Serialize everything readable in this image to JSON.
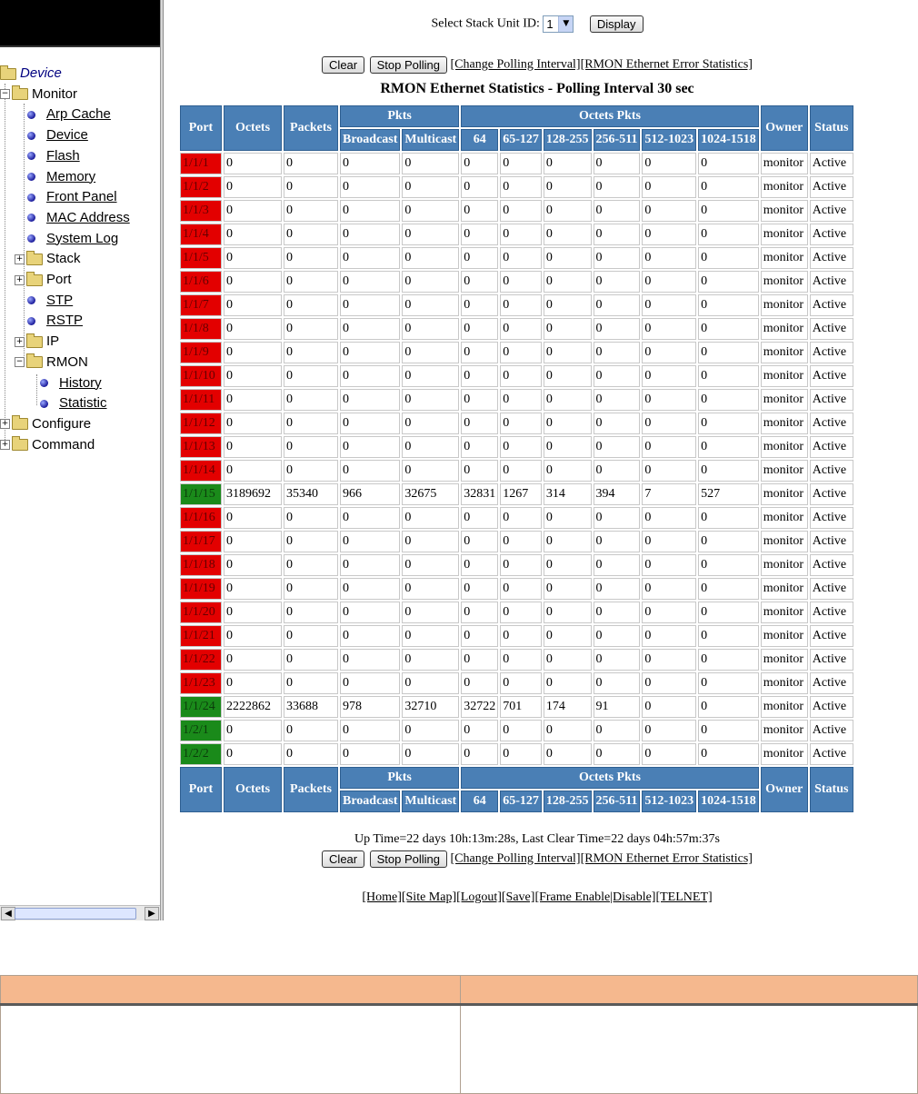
{
  "sidebar": {
    "root": "Device",
    "items": [
      {
        "label": "Monitor",
        "type": "folder-open"
      },
      {
        "label": "Arp Cache",
        "type": "link"
      },
      {
        "label": "Device",
        "type": "link"
      },
      {
        "label": "Flash",
        "type": "link"
      },
      {
        "label": "Memory",
        "type": "link"
      },
      {
        "label": "Front Panel",
        "type": "link"
      },
      {
        "label": "MAC Address",
        "type": "link"
      },
      {
        "label": "System Log",
        "type": "link"
      },
      {
        "label": "Stack",
        "type": "folder"
      },
      {
        "label": "Port",
        "type": "folder"
      },
      {
        "label": "STP",
        "type": "link"
      },
      {
        "label": "RSTP",
        "type": "link"
      },
      {
        "label": "IP",
        "type": "folder"
      },
      {
        "label": "RMON",
        "type": "folder-open"
      },
      {
        "label": "History",
        "type": "link"
      },
      {
        "label": "Statistic",
        "type": "link"
      },
      {
        "label": "Configure",
        "type": "folder"
      },
      {
        "label": "Command",
        "type": "folder"
      }
    ]
  },
  "stack_select": {
    "label": "Select Stack Unit ID:",
    "value": "1",
    "display_button": "Display"
  },
  "controls": {
    "clear": "Clear",
    "stop_polling": "Stop Polling",
    "change_interval": "[Change Polling Interval]",
    "error_stats": "[RMON Ethernet Error Statistics]"
  },
  "title": "RMON Ethernet Statistics - Polling Interval 30 sec",
  "table": {
    "headers": {
      "port": "Port",
      "octets": "Octets",
      "packets": "Packets",
      "pkts": "Pkts",
      "broadcast": "Broadcast",
      "multicast": "Multicast",
      "octets_pkts": "Octets Pkts",
      "b64": "64",
      "b65": "65-127",
      "b128": "128-255",
      "b256": "256-511",
      "b512": "512-1023",
      "b1024": "1024-1518",
      "owner": "Owner",
      "status": "Status"
    },
    "rows": [
      [
        "1/1/1",
        "red",
        "0",
        "0",
        "0",
        "0",
        "0",
        "0",
        "0",
        "0",
        "0",
        "0",
        "monitor",
        "Active"
      ],
      [
        "1/1/2",
        "red",
        "0",
        "0",
        "0",
        "0",
        "0",
        "0",
        "0",
        "0",
        "0",
        "0",
        "monitor",
        "Active"
      ],
      [
        "1/1/3",
        "red",
        "0",
        "0",
        "0",
        "0",
        "0",
        "0",
        "0",
        "0",
        "0",
        "0",
        "monitor",
        "Active"
      ],
      [
        "1/1/4",
        "red",
        "0",
        "0",
        "0",
        "0",
        "0",
        "0",
        "0",
        "0",
        "0",
        "0",
        "monitor",
        "Active"
      ],
      [
        "1/1/5",
        "red",
        "0",
        "0",
        "0",
        "0",
        "0",
        "0",
        "0",
        "0",
        "0",
        "0",
        "monitor",
        "Active"
      ],
      [
        "1/1/6",
        "red",
        "0",
        "0",
        "0",
        "0",
        "0",
        "0",
        "0",
        "0",
        "0",
        "0",
        "monitor",
        "Active"
      ],
      [
        "1/1/7",
        "red",
        "0",
        "0",
        "0",
        "0",
        "0",
        "0",
        "0",
        "0",
        "0",
        "0",
        "monitor",
        "Active"
      ],
      [
        "1/1/8",
        "red",
        "0",
        "0",
        "0",
        "0",
        "0",
        "0",
        "0",
        "0",
        "0",
        "0",
        "monitor",
        "Active"
      ],
      [
        "1/1/9",
        "red",
        "0",
        "0",
        "0",
        "0",
        "0",
        "0",
        "0",
        "0",
        "0",
        "0",
        "monitor",
        "Active"
      ],
      [
        "1/1/10",
        "red",
        "0",
        "0",
        "0",
        "0",
        "0",
        "0",
        "0",
        "0",
        "0",
        "0",
        "monitor",
        "Active"
      ],
      [
        "1/1/11",
        "red",
        "0",
        "0",
        "0",
        "0",
        "0",
        "0",
        "0",
        "0",
        "0",
        "0",
        "monitor",
        "Active"
      ],
      [
        "1/1/12",
        "red",
        "0",
        "0",
        "0",
        "0",
        "0",
        "0",
        "0",
        "0",
        "0",
        "0",
        "monitor",
        "Active"
      ],
      [
        "1/1/13",
        "red",
        "0",
        "0",
        "0",
        "0",
        "0",
        "0",
        "0",
        "0",
        "0",
        "0",
        "monitor",
        "Active"
      ],
      [
        "1/1/14",
        "red",
        "0",
        "0",
        "0",
        "0",
        "0",
        "0",
        "0",
        "0",
        "0",
        "0",
        "monitor",
        "Active"
      ],
      [
        "1/1/15",
        "green",
        "3189692",
        "35340",
        "966",
        "32675",
        "32831",
        "1267",
        "314",
        "394",
        "7",
        "527",
        "monitor",
        "Active"
      ],
      [
        "1/1/16",
        "red",
        "0",
        "0",
        "0",
        "0",
        "0",
        "0",
        "0",
        "0",
        "0",
        "0",
        "monitor",
        "Active"
      ],
      [
        "1/1/17",
        "red",
        "0",
        "0",
        "0",
        "0",
        "0",
        "0",
        "0",
        "0",
        "0",
        "0",
        "monitor",
        "Active"
      ],
      [
        "1/1/18",
        "red",
        "0",
        "0",
        "0",
        "0",
        "0",
        "0",
        "0",
        "0",
        "0",
        "0",
        "monitor",
        "Active"
      ],
      [
        "1/1/19",
        "red",
        "0",
        "0",
        "0",
        "0",
        "0",
        "0",
        "0",
        "0",
        "0",
        "0",
        "monitor",
        "Active"
      ],
      [
        "1/1/20",
        "red",
        "0",
        "0",
        "0",
        "0",
        "0",
        "0",
        "0",
        "0",
        "0",
        "0",
        "monitor",
        "Active"
      ],
      [
        "1/1/21",
        "red",
        "0",
        "0",
        "0",
        "0",
        "0",
        "0",
        "0",
        "0",
        "0",
        "0",
        "monitor",
        "Active"
      ],
      [
        "1/1/22",
        "red",
        "0",
        "0",
        "0",
        "0",
        "0",
        "0",
        "0",
        "0",
        "0",
        "0",
        "monitor",
        "Active"
      ],
      [
        "1/1/23",
        "red",
        "0",
        "0",
        "0",
        "0",
        "0",
        "0",
        "0",
        "0",
        "0",
        "0",
        "monitor",
        "Active"
      ],
      [
        "1/1/24",
        "green",
        "2222862",
        "33688",
        "978",
        "32710",
        "32722",
        "701",
        "174",
        "91",
        "0",
        "0",
        "monitor",
        "Active"
      ],
      [
        "1/2/1",
        "green",
        "0",
        "0",
        "0",
        "0",
        "0",
        "0",
        "0",
        "0",
        "0",
        "0",
        "monitor",
        "Active"
      ],
      [
        "1/2/2",
        "green",
        "0",
        "0",
        "0",
        "0",
        "0",
        "0",
        "0",
        "0",
        "0",
        "0",
        "monitor",
        "Active"
      ]
    ]
  },
  "uptime": "Up Time=22 days 10h:13m:28s, Last Clear Time=22 days 04h:57m:37s",
  "footer_links": [
    "[Home]",
    "[Site Map]",
    "[Logout]",
    "[Save]",
    "[Frame Enable|Disable]",
    "[TELNET]"
  ],
  "colors": {
    "port_down": "#e30000",
    "port_up": "#1a8a1a",
    "header_bg": "#4a7fb5",
    "doc_header": "#f5b88e"
  }
}
